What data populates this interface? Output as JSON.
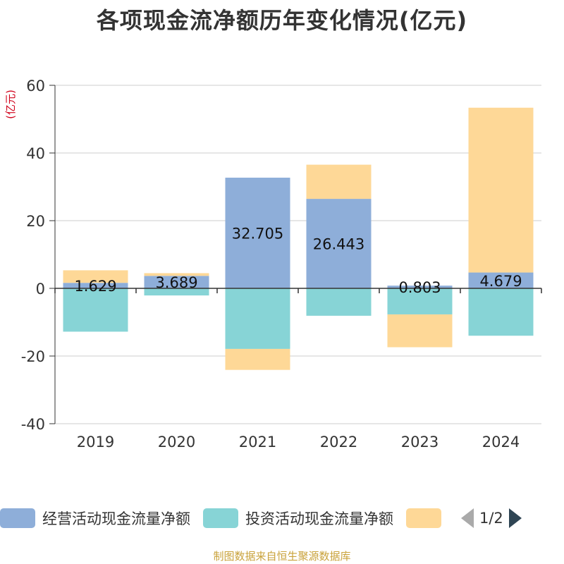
{
  "title": "各项现金流净额历年变化情况(亿元)",
  "source": "制图数据来自恒生聚源数据库",
  "legend": {
    "page_text": "1/2"
  },
  "chart_data": {
    "type": "bar",
    "stacked": true,
    "categories": [
      "2019",
      "2020",
      "2021",
      "2022",
      "2023",
      "2024"
    ],
    "ylabel": "(亿元)",
    "ylim": [
      -40,
      60
    ],
    "yticks": [
      -40,
      -20,
      0,
      20,
      40,
      60
    ],
    "grid": true,
    "legend_position": "bottom",
    "series": [
      {
        "name": "经营活动现金流量净额",
        "color": "#8eaed9",
        "values": [
          1.629,
          3.689,
          32.705,
          26.443,
          0.803,
          4.679
        ],
        "show_labels": true
      },
      {
        "name": "投资活动现金流量净额",
        "color": "#87d4d6",
        "values": [
          -12.8,
          -2.1,
          -17.9,
          -8.1,
          -7.7,
          -14.0
        ],
        "show_labels": false
      },
      {
        "name": "",
        "color": "#fed897",
        "values": [
          3.7,
          0.8,
          -6.2,
          10.1,
          -9.7,
          48.7
        ],
        "show_labels": false
      }
    ]
  }
}
